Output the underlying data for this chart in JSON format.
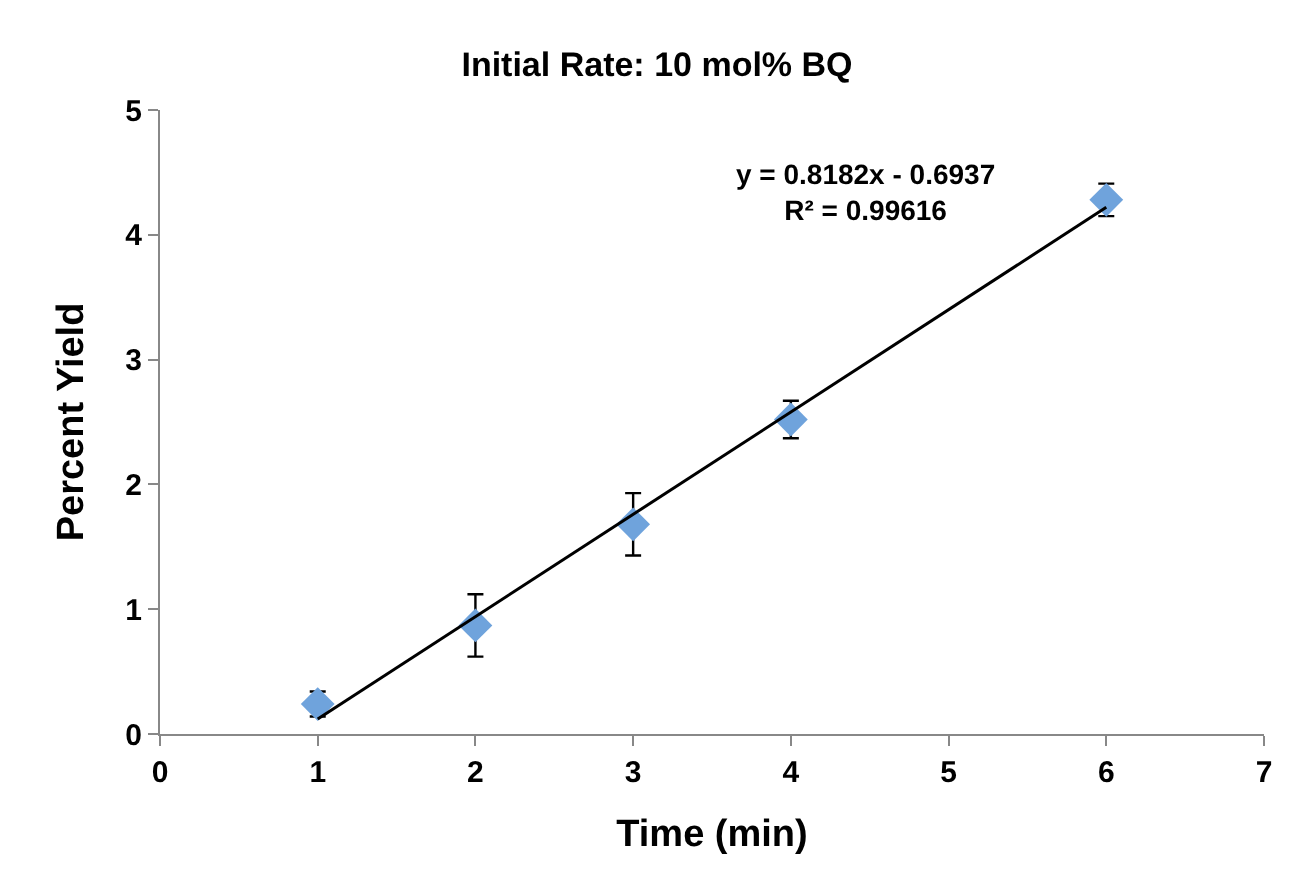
{
  "chart_data": {
    "type": "scatter",
    "title": "Initial Rate: 10 mol% BQ",
    "xlabel": "Time (min)",
    "ylabel": "Percent Yield",
    "x": [
      1,
      2,
      3,
      4,
      6
    ],
    "series": [
      {
        "color": "#6fa3dc",
        "values": [
          0.24,
          0.87,
          1.68,
          2.52,
          4.28
        ],
        "errors": [
          0.1,
          0.25,
          0.25,
          0.15,
          0.13
        ],
        "marker": "diamond"
      },
      {
        "type": "line",
        "color": "#000000",
        "x": [
          1,
          6
        ],
        "values": [
          0.12,
          4.22
        ],
        "marker": "none",
        "line_style": "solid"
      }
    ],
    "annotations": [
      "y = 0.8182x - 0.6937\nR² = 0.99616"
    ],
    "xlim": [
      0,
      7
    ],
    "xticks": [
      0,
      1,
      2,
      3,
      4,
      5,
      6,
      7
    ],
    "ylim": [
      0,
      5
    ],
    "yticks": [
      0,
      1,
      2,
      3,
      4,
      5
    ],
    "legend": false
  }
}
